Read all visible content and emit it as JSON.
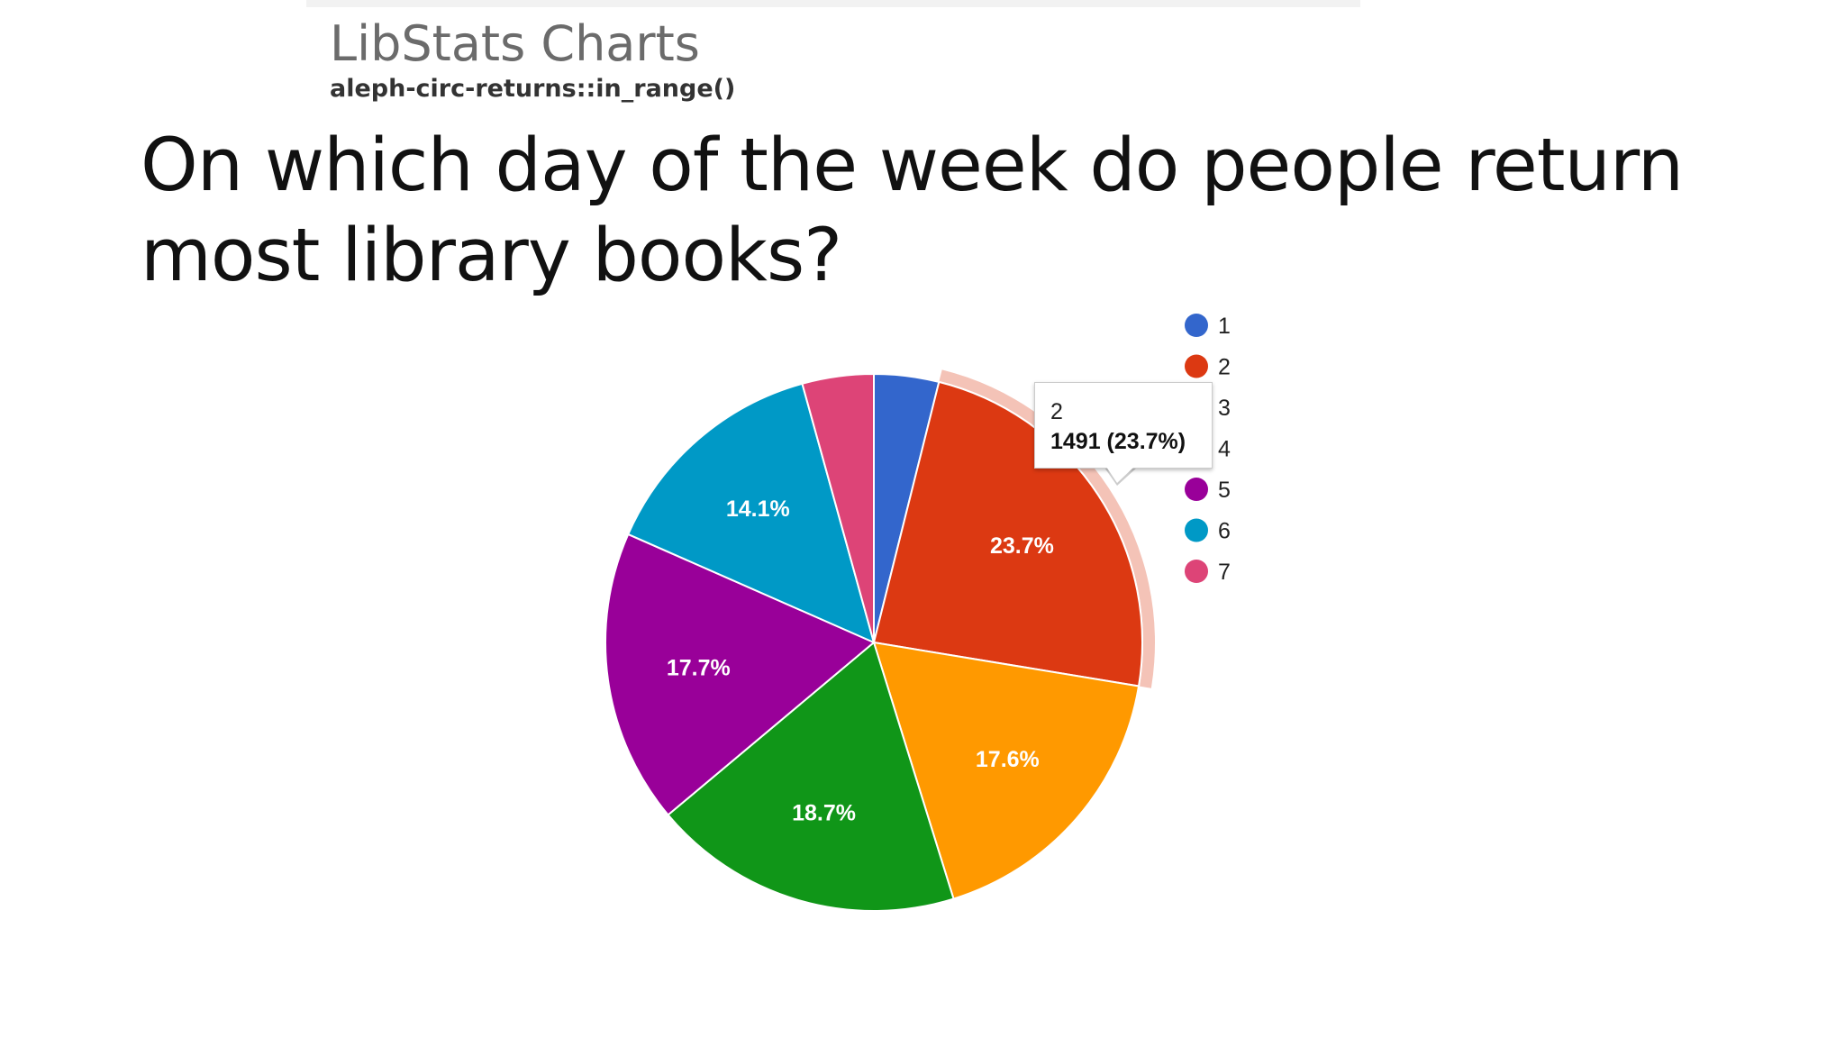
{
  "header": {
    "app_title": "LibStats Charts",
    "subtitle": "aleph-circ-returns::in_range()"
  },
  "question": {
    "line1": "On which day of the week do people return",
    "line2": "most library books?"
  },
  "tooltip": {
    "name": "2",
    "value": "1491 (23.7%)"
  },
  "chart_data": {
    "type": "pie",
    "title": "",
    "legend_position": "right",
    "highlighted_slice": "2",
    "slices": [
      {
        "name": "1",
        "percent": 3.9,
        "label": "",
        "color": "#3366cc"
      },
      {
        "name": "2",
        "percent": 23.7,
        "value": 1491,
        "label": "23.7%",
        "color": "#dc3912"
      },
      {
        "name": "3",
        "percent": 17.6,
        "label": "17.6%",
        "color": "#ff9900"
      },
      {
        "name": "4",
        "percent": 18.7,
        "label": "18.7%",
        "color": "#109618"
      },
      {
        "name": "5",
        "percent": 17.7,
        "label": "17.7%",
        "color": "#990099"
      },
      {
        "name": "6",
        "percent": 14.1,
        "label": "14.1%",
        "color": "#0099c6"
      },
      {
        "name": "7",
        "percent": 4.3,
        "label": "",
        "color": "#dd4477"
      }
    ]
  }
}
